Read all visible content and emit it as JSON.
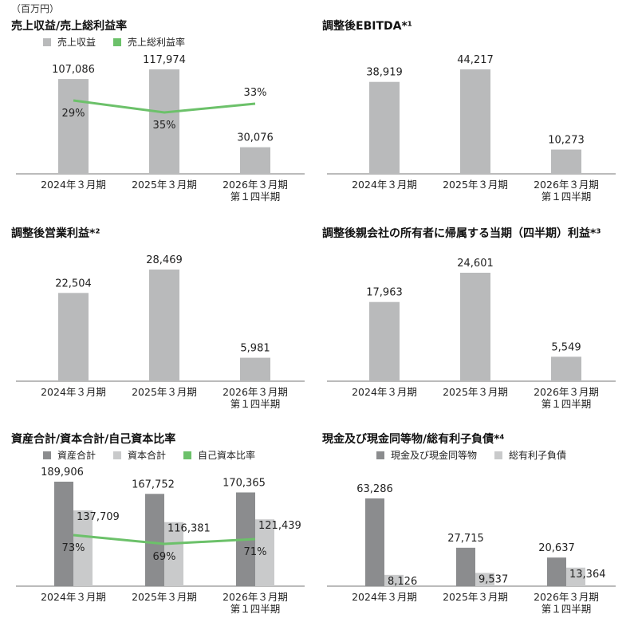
{
  "unit": "（百万円）",
  "colors": {
    "gray": "#b9babb",
    "dark": "#8b8c8e",
    "light": "#c9cacb",
    "green": "#6cc16a",
    "axis": "#777777"
  },
  "chart_data": [
    {
      "type": "bar",
      "title": "売上収益/売上総利益率",
      "categories": [
        "2024年３月期",
        "2025年３月期",
        "2026年３月期\n第１四半期"
      ],
      "series": [
        {
          "name": "売上収益",
          "values": [
            107086,
            117974,
            30076
          ],
          "labels": [
            "107,086",
            "117,974",
            "30,076"
          ]
        },
        {
          "name": "売上総利益率",
          "type": "line",
          "values": [
            29,
            35,
            33
          ],
          "labels": [
            "29%",
            "35%",
            "33%"
          ]
        }
      ]
    },
    {
      "type": "bar",
      "title": "調整後EBITDA*¹",
      "categories": [
        "2024年３月期",
        "2025年３月期",
        "2026年３月期\n第１四半期"
      ],
      "series": [
        {
          "values": [
            38919,
            44217,
            10273
          ],
          "labels": [
            "38,919",
            "44,217",
            "10,273"
          ]
        }
      ]
    },
    {
      "type": "bar",
      "title": "調整後営業利益*²",
      "categories": [
        "2024年３月期",
        "2025年３月期",
        "2026年３月期\n第１四半期"
      ],
      "series": [
        {
          "values": [
            22504,
            28469,
            5981
          ],
          "labels": [
            "22,504",
            "28,469",
            "5,981"
          ]
        }
      ]
    },
    {
      "type": "bar",
      "title": "調整後親会社の所有者に帰属する当期（四半期）利益*³",
      "categories": [
        "2024年３月期",
        "2025年３月期",
        "2026年３月期\n第１四半期"
      ],
      "series": [
        {
          "values": [
            17963,
            24601,
            5549
          ],
          "labels": [
            "17,963",
            "24,601",
            "5,549"
          ]
        }
      ]
    },
    {
      "type": "bar",
      "title": "資産合計/資本合計/自己資本比率",
      "categories": [
        "2024年３月期",
        "2025年３月期",
        "2026年３月期\n第１四半期"
      ],
      "series": [
        {
          "name": "資産合計",
          "values": [
            189906,
            167752,
            170365
          ],
          "labels": [
            "189,906",
            "167,752",
            "170,365"
          ]
        },
        {
          "name": "資本合計",
          "values": [
            137709,
            116381,
            121439
          ],
          "labels": [
            "137,709",
            "116,381",
            "121,439"
          ]
        },
        {
          "name": "自己資本比率",
          "type": "line",
          "values": [
            73,
            69,
            71
          ],
          "labels": [
            "73%",
            "69%",
            "71%"
          ]
        }
      ]
    },
    {
      "type": "bar",
      "title": "現金及び現金同等物/総有利子負債*⁴",
      "categories": [
        "2024年３月期",
        "2025年３月期",
        "2026年３月期\n第１四半期"
      ],
      "series": [
        {
          "name": "現金及び現金同等物",
          "values": [
            63286,
            27715,
            20637
          ],
          "labels": [
            "63,286",
            "27,715",
            "20,637"
          ]
        },
        {
          "name": "総有利子負債",
          "values": [
            8126,
            9537,
            13364
          ],
          "labels": [
            "8,126",
            "9,537",
            "13,364"
          ]
        }
      ]
    }
  ]
}
